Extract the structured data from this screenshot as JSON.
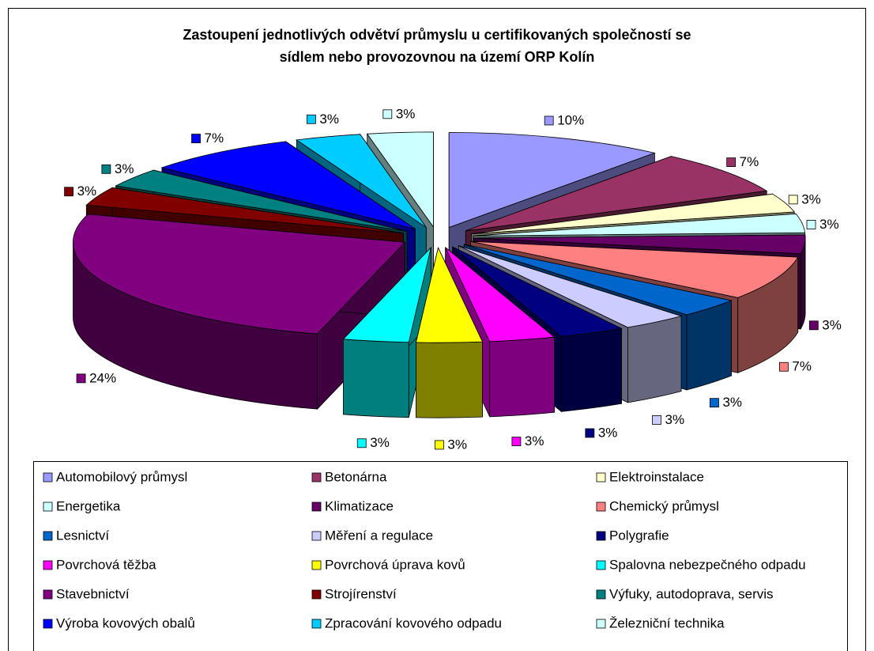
{
  "chart_data": {
    "type": "pie3d",
    "title": [
      "Zastoupení jednotlivých odvětví průmyslu u certifikovaných společností se",
      "sídlem nebo provozovnou na území ORP Kolín"
    ],
    "categories": [
      "Automobilový průmysl",
      "Betonárna",
      "Elektroinstalace",
      "Energetika",
      "Klimatizace",
      "Chemický průmysl",
      "Lesnictví",
      "Měření a regulace",
      "Polygrafie",
      "Povrchová těžba",
      "Povrchová úprava kovů",
      "Spalovna nebezpečného odpadu",
      "Stavebnictví",
      "Strojírenství",
      "Výfuky, autodoprava, servis",
      "Výroba kovových obalů",
      "Zpracování kovového odpadu",
      "Železniční technika"
    ],
    "values": [
      10,
      7,
      3,
      3,
      3,
      7,
      3,
      3,
      3,
      3,
      3,
      3,
      24,
      3,
      3,
      7,
      3,
      3
    ],
    "value_labels": [
      "10%",
      "7%",
      "3%",
      "3%",
      "3%",
      "7%",
      "3%",
      "3%",
      "3%",
      "3%",
      "3%",
      "3%",
      "24%",
      "3%",
      "3%",
      "7%",
      "3%",
      "3%"
    ],
    "colors": [
      "#9999FF",
      "#993366",
      "#FFFFCC",
      "#CCFFFF",
      "#660066",
      "#FF8080",
      "#0066CC",
      "#CCCCFF",
      "#000080",
      "#FF00FF",
      "#FFFF00",
      "#00FFFF",
      "#800080",
      "#800000",
      "#008080",
      "#0000FF",
      "#00CCFF",
      "#CCFFFF"
    ],
    "legend": "bottom"
  }
}
